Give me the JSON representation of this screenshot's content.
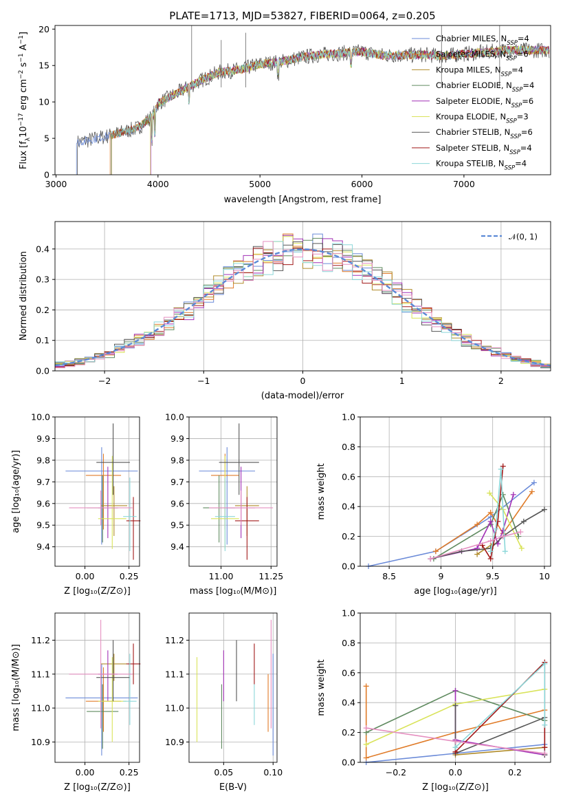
{
  "title": "PLATE=1713, MJD=53827, FIBERID=0064, z=0.205",
  "colors": [
    "#6a8ad8",
    "#e07b28",
    "#b08b2a",
    "#5f8a5f",
    "#a12fb5",
    "#d9e35a",
    "#555555",
    "#a11818",
    "#8bd7d9",
    "#e58fc0"
  ],
  "legend": [
    {
      "label": "Chabrier MILES, N",
      "sub": "SSP",
      "val": "=4"
    },
    {
      "label": "Salpeter MILES, N",
      "sub": "SSP",
      "val": "=6"
    },
    {
      "label": "Kroupa MILES, N",
      "sub": "SSP",
      "val": "=4"
    },
    {
      "label": "Chabrier ELODIE, N",
      "sub": "SSP",
      "val": "=4"
    },
    {
      "label": "Salpeter ELODIE, N",
      "sub": "SSP",
      "val": "=6"
    },
    {
      "label": "Kroupa ELODIE, N",
      "sub": "SSP",
      "val": "=3"
    },
    {
      "label": "Chabrier STELIB, N",
      "sub": "SSP",
      "val": "=6"
    },
    {
      "label": "Salpeter STELIB, N",
      "sub": "SSP",
      "val": "=4"
    },
    {
      "label": "Kroupa STELIB, N",
      "sub": "SSP",
      "val": "=4"
    }
  ],
  "chart_data": [
    {
      "type": "line",
      "xlabel": "wavelength [Angstrom, rest frame]",
      "xlim": [
        2990,
        7850
      ],
      "ylim": [
        0,
        20.5
      ],
      "xticks": [
        3000,
        4000,
        5000,
        6000,
        7000
      ],
      "yticks": [
        0,
        5,
        10,
        15,
        20
      ],
      "approx_spectrum": [
        [
          3200,
          4.4
        ],
        [
          3500,
          5.3
        ],
        [
          3800,
          6.4
        ],
        [
          3950,
          8.1
        ],
        [
          4000,
          9.8
        ],
        [
          4200,
          11.3
        ],
        [
          4400,
          12.8
        ],
        [
          4600,
          14.1
        ],
        [
          4800,
          14.4
        ],
        [
          5000,
          15.2
        ],
        [
          5200,
          15.5
        ],
        [
          5400,
          16.1
        ],
        [
          5600,
          16.5
        ],
        [
          5800,
          16.7
        ],
        [
          6000,
          16.9
        ],
        [
          6200,
          16.4
        ],
        [
          6400,
          16.4
        ],
        [
          6600,
          16.5
        ],
        [
          6800,
          16.3
        ],
        [
          7000,
          16.6
        ],
        [
          7200,
          16.8
        ],
        [
          7400,
          17.1
        ]
      ],
      "spectrum_start": [
        3200,
        3530,
        3545,
        3540,
        3930,
        3925,
        3210,
        3540,
        3540
      ]
    },
    {
      "type": "bar",
      "xlabel": "(data-model)/error",
      "ylabel": "Normed distribution",
      "xlim": [
        -2.5,
        2.5
      ],
      "ylim": [
        0,
        0.49
      ],
      "xticks": [
        -2,
        -1,
        0,
        1,
        2
      ],
      "yticks": [
        0.0,
        0.1,
        0.2,
        0.3,
        0.4
      ],
      "gaussian_label": "𝒩(0, 1)",
      "bins": [
        -2.5,
        -2.4,
        -2.3,
        -2.2,
        -2.1,
        -2.0,
        -1.9,
        -1.8,
        -1.7,
        -1.6,
        -1.5,
        -1.4,
        -1.3,
        -1.2,
        -1.1,
        -1.0,
        -0.9,
        -0.8,
        -0.7,
        -0.6,
        -0.5,
        -0.4,
        -0.3,
        -0.2,
        -0.1,
        0.0,
        0.1,
        0.2,
        0.3,
        0.4,
        0.5,
        0.6,
        0.7,
        0.8,
        0.9,
        1.0,
        1.1,
        1.2,
        1.3,
        1.4,
        1.5,
        1.6,
        1.7,
        1.8,
        1.9,
        2.0,
        2.1,
        2.2,
        2.3,
        2.4,
        2.5
      ]
    },
    {
      "type": "scatter",
      "xlabel": "Z [log₁₀(Z/Z⊙)]",
      "ylabel": "age  [log₁₀(age/yr)]",
      "xlim": [
        -0.17,
        0.31
      ],
      "ylim": [
        9.31,
        10.0
      ],
      "xticks": [
        0.0,
        0.25
      ],
      "xticklabels": [
        "0.00",
        "0.25"
      ],
      "yticks": [
        9.4,
        9.5,
        9.6,
        9.7,
        9.8,
        9.9,
        10.0
      ],
      "points": [
        {
          "x": 0.095,
          "y": 9.75,
          "xerr": 0.205,
          "ylo": 9.41,
          "yhi": 9.86
        },
        {
          "x": 0.105,
          "y": 9.73,
          "xerr": 0.1,
          "ylo": 9.48,
          "yhi": 9.83
        },
        {
          "x": 0.165,
          "y": 9.59,
          "xerr": 0.075,
          "ylo": 9.45,
          "yhi": 9.68
        },
        {
          "x": 0.1,
          "y": 9.58,
          "xerr": 0.09,
          "ylo": 9.42,
          "yhi": 9.73
        },
        {
          "x": 0.13,
          "y": 9.58,
          "xerr": 0.055,
          "ylo": 9.44,
          "yhi": 9.77
        },
        {
          "x": 0.155,
          "y": 9.53,
          "xerr": 0.08,
          "ylo": 9.39,
          "yhi": 9.82
        },
        {
          "x": 0.16,
          "y": 9.79,
          "xerr": 0.095,
          "ylo": 9.64,
          "yhi": 9.97
        },
        {
          "x": 0.275,
          "y": 9.52,
          "xerr": 0.04,
          "ylo": 9.34,
          "yhi": 9.63
        },
        {
          "x": 0.255,
          "y": 9.54,
          "xerr": 0.038,
          "ylo": 9.38,
          "yhi": 9.72
        },
        {
          "x": 0.09,
          "y": 9.58,
          "xerr": 0.18,
          "ylo": 9.5,
          "yhi": 9.66
        }
      ]
    },
    {
      "type": "scatter",
      "xlabel": "mass [log₁₀(M/M⊙)]",
      "xlim": [
        10.84,
        11.28
      ],
      "ylim": [
        9.31,
        10.0
      ],
      "xticks": [
        11.0,
        11.25
      ],
      "xticklabels": [
        "11.00",
        "11.25"
      ],
      "yticks": [
        9.4,
        9.5,
        9.6,
        9.7,
        9.8,
        9.9,
        10.0
      ],
      "points": [
        {
          "x": 11.03,
          "y": 9.75,
          "xerr": 0.14,
          "ylo": 9.41,
          "yhi": 9.86
        },
        {
          "x": 11.02,
          "y": 9.73,
          "xerr": 0.07,
          "ylo": 9.48,
          "yhi": 9.83
        },
        {
          "x": 11.13,
          "y": 9.59,
          "xerr": 0.06,
          "ylo": 9.45,
          "yhi": 9.68
        },
        {
          "x": 10.99,
          "y": 9.58,
          "xerr": 0.08,
          "ylo": 9.42,
          "yhi": 9.73
        },
        {
          "x": 11.1,
          "y": 9.58,
          "xerr": 0.07,
          "ylo": 9.44,
          "yhi": 9.77
        },
        {
          "x": 11.02,
          "y": 9.53,
          "xerr": 0.07,
          "ylo": 9.39,
          "yhi": 9.82
        },
        {
          "x": 11.09,
          "y": 9.79,
          "xerr": 0.1,
          "ylo": 9.64,
          "yhi": 9.97
        },
        {
          "x": 11.13,
          "y": 9.52,
          "xerr": 0.06,
          "ylo": 9.34,
          "yhi": 9.63
        },
        {
          "x": 11.02,
          "y": 9.54,
          "xerr": 0.05,
          "ylo": 9.38,
          "yhi": 9.72
        },
        {
          "x": 11.1,
          "y": 9.58,
          "xerr": 0.16,
          "ylo": 9.5,
          "yhi": 9.66
        }
      ]
    },
    {
      "type": "line",
      "xlabel": "age  [log₁₀(age/yr)]",
      "ylabel": "mass weight",
      "xlim": [
        8.22,
        10.06
      ],
      "ylim": [
        0,
        1.0
      ],
      "xticks": [
        8.5,
        9.0,
        9.5,
        10.0
      ],
      "yticks": [
        0.0,
        0.2,
        0.4,
        0.6,
        0.8,
        1.0
      ],
      "series": [
        {
          "x": [
            8.3,
            8.95,
            9.48,
            9.9
          ],
          "y": [
            0.0,
            0.1,
            0.33,
            0.56
          ]
        },
        {
          "x": [
            8.95,
            9.35,
            9.48,
            9.6,
            9.88
          ],
          "y": [
            0.1,
            0.28,
            0.36,
            0.22,
            0.5
          ]
        },
        {
          "x": [
            9.35,
            9.5
          ],
          "y": [
            0.08,
            0.15
          ]
        },
        {
          "x": [
            8.93,
            9.48,
            9.6,
            9.75
          ],
          "y": [
            0.05,
            0.28,
            0.48,
            0.2
          ]
        },
        {
          "x": [
            8.9,
            9.35,
            9.48,
            9.55,
            9.6,
            9.7
          ],
          "y": [
            0.05,
            0.12,
            0.3,
            0.15,
            0.24,
            0.48
          ]
        },
        {
          "x": [
            9.47,
            9.6,
            9.78
          ],
          "y": [
            0.49,
            0.38,
            0.12
          ]
        },
        {
          "x": [
            8.9,
            9.2,
            9.48,
            9.6,
            9.8,
            10.0
          ],
          "y": [
            0.05,
            0.1,
            0.12,
            0.2,
            0.3,
            0.38
          ]
        },
        {
          "x": [
            9.4,
            9.48,
            9.55,
            9.6
          ],
          "y": [
            0.14,
            0.05,
            0.3,
            0.67
          ]
        },
        {
          "x": [
            9.48,
            9.53,
            9.58,
            9.62
          ],
          "y": [
            0.1,
            0.25,
            0.65,
            0.1
          ]
        },
        {
          "x": [
            8.9,
            9.48,
            9.6,
            9.77
          ],
          "y": [
            0.05,
            0.17,
            0.2,
            0.23
          ]
        }
      ]
    },
    {
      "type": "scatter",
      "xlabel": "Z [log₁₀(Z/Z⊙)]",
      "ylabel": "mass [log₁₀(M/M⊙)]",
      "xlim": [
        -0.17,
        0.31
      ],
      "ylim": [
        10.84,
        11.28
      ],
      "xticks": [
        0.0,
        0.25
      ],
      "xticklabels": [
        "0.00",
        "0.25"
      ],
      "yticks": [
        10.9,
        11.0,
        11.1,
        11.2
      ],
      "points": [
        {
          "x": 0.095,
          "y": 11.03,
          "xerr": 0.205,
          "ylo": 10.86,
          "yhi": 11.13
        },
        {
          "x": 0.105,
          "y": 11.02,
          "xerr": 0.1,
          "ylo": 10.93,
          "yhi": 11.12
        },
        {
          "x": 0.165,
          "y": 11.13,
          "xerr": 0.075,
          "ylo": 11.08,
          "yhi": 11.16
        },
        {
          "x": 0.1,
          "y": 10.99,
          "xerr": 0.09,
          "ylo": 10.88,
          "yhi": 11.07
        },
        {
          "x": 0.13,
          "y": 11.1,
          "xerr": 0.055,
          "ylo": 11.02,
          "yhi": 11.17
        },
        {
          "x": 0.155,
          "y": 11.02,
          "xerr": 0.08,
          "ylo": 10.9,
          "yhi": 11.15
        },
        {
          "x": 0.16,
          "y": 11.09,
          "xerr": 0.095,
          "ylo": 11.02,
          "yhi": 11.2
        },
        {
          "x": 0.275,
          "y": 11.13,
          "xerr": 0.04,
          "ylo": 11.07,
          "yhi": 11.19
        },
        {
          "x": 0.255,
          "y": 11.02,
          "xerr": 0.038,
          "ylo": 10.95,
          "yhi": 11.16
        },
        {
          "x": 0.09,
          "y": 11.1,
          "xerr": 0.18,
          "ylo": 10.94,
          "yhi": 11.26
        }
      ]
    },
    {
      "type": "scatter",
      "xlabel": "E(B-V)",
      "xlim": [
        0.015,
        0.104
      ],
      "ylim": [
        10.84,
        11.28
      ],
      "xticks": [
        0.05,
        0.1
      ],
      "xticklabels": [
        "0.05",
        "0.10"
      ],
      "yticks": [
        10.9,
        11.0,
        11.1,
        11.2
      ],
      "points": [
        {
          "x": 0.1,
          "y": 11.03,
          "ylo": 10.86,
          "yhi": 11.16
        },
        {
          "x": 0.095,
          "y": 11.02,
          "ylo": 10.93,
          "yhi": 11.1
        },
        {
          "x": 0.048,
          "y": 10.99,
          "ylo": 10.88,
          "yhi": 11.07
        },
        {
          "x": 0.05,
          "y": 11.1,
          "ylo": 11.02,
          "yhi": 11.17
        },
        {
          "x": 0.023,
          "y": 11.02,
          "ylo": 10.9,
          "yhi": 11.15
        },
        {
          "x": 0.063,
          "y": 11.09,
          "ylo": 11.02,
          "yhi": 11.2
        },
        {
          "x": 0.081,
          "y": 11.13,
          "ylo": 11.07,
          "yhi": 11.19
        },
        {
          "x": 0.081,
          "y": 11.02,
          "ylo": 10.95,
          "yhi": 11.07
        },
        {
          "x": 0.098,
          "y": 11.1,
          "ylo": 10.94,
          "yhi": 11.26
        }
      ]
    },
    {
      "type": "line",
      "xlabel": "Z [log₁₀(Z/Z⊙)]",
      "ylabel": "mass weight",
      "xlim": [
        -0.32,
        0.32
      ],
      "ylim": [
        0,
        1.0
      ],
      "xticks": [
        -0.2,
        0.0,
        0.2
      ],
      "xticklabels": [
        "−0.2",
        "0.0",
        "0.2"
      ],
      "yticks": [
        0.0,
        0.2,
        0.4,
        0.6,
        0.8,
        1.0
      ],
      "series": [
        {
          "x": [
            -0.3,
            0.0,
            0.3
          ],
          "y": [
            0.0,
            0.06,
            0.12
          ]
        },
        {
          "x": [
            -0.3,
            -0.3,
            0.0,
            0.3
          ],
          "y": [
            0.51,
            0.03,
            0.2,
            0.35
          ]
        },
        {
          "x": [
            0.0,
            0.3
          ],
          "y": [
            0.05,
            0.1
          ]
        },
        {
          "x": [
            -0.3,
            0.0,
            0.3
          ],
          "y": [
            0.2,
            0.48,
            0.28
          ]
        },
        {
          "x": [
            0.0,
            0.0,
            0.3
          ],
          "y": [
            0.48,
            0.15,
            0.05
          ]
        },
        {
          "x": [
            -0.3,
            0.0,
            0.3
          ],
          "y": [
            0.12,
            0.39,
            0.49
          ]
        },
        {
          "x": [
            0.0,
            0.0,
            0.3,
            0.3
          ],
          "y": [
            0.38,
            0.06,
            0.3,
            0.05
          ]
        },
        {
          "x": [
            0.0,
            0.3,
            0.3
          ],
          "y": [
            0.07,
            0.67,
            0.1
          ]
        },
        {
          "x": [
            0.0,
            0.3,
            0.3
          ],
          "y": [
            0.1,
            0.66,
            0.25
          ]
        },
        {
          "x": [
            -0.3,
            0.0,
            0.3
          ],
          "y": [
            0.23,
            0.14,
            0.06
          ]
        }
      ]
    }
  ]
}
